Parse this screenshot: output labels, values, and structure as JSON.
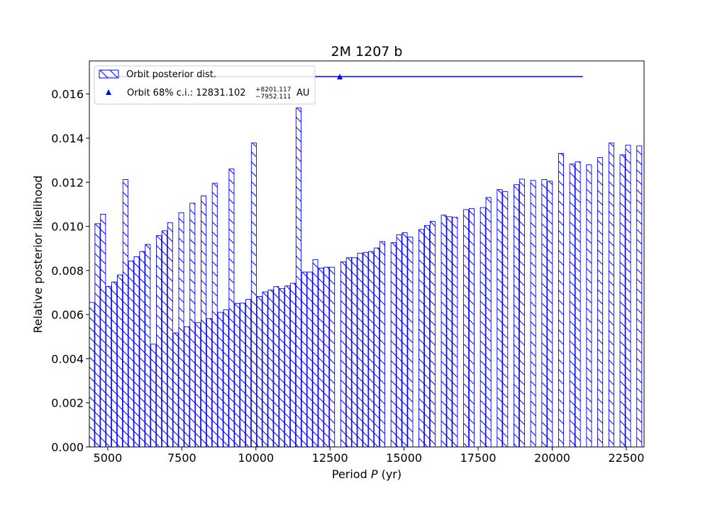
{
  "colors": {
    "series": "#0000ff",
    "axis": "#000000",
    "background": "#ffffff",
    "legend_border": "#cccccc"
  },
  "chart_data": {
    "type": "bar",
    "title": "2M 1207 b",
    "xlabel_prefix": "Period ",
    "xlabel_var": "P",
    "xlabel_suffix": " (yr)",
    "ylabel": "Relative posterior likelihood",
    "xlim": [
      4380,
      23100
    ],
    "ylim": [
      0,
      0.0175
    ],
    "xticks": [
      5000,
      7500,
      10000,
      12500,
      15000,
      17500,
      20000,
      22500
    ],
    "xtick_labels": [
      "5000",
      "7500",
      "10000",
      "12500",
      "15000",
      "17500",
      "20000",
      "22500"
    ],
    "yticks": [
      0,
      0.002,
      0.004,
      0.006,
      0.008,
      0.01,
      0.012,
      0.014,
      0.016
    ],
    "ytick_labels": [
      "0.000",
      "0.002",
      "0.004",
      "0.006",
      "0.008",
      "0.010",
      "0.012",
      "0.014",
      "0.016"
    ],
    "bar_x_start": 4380,
    "bar_step": 188.5,
    "bar_width": 170,
    "values": [
      0.00655,
      0.01012,
      0.01055,
      0.00728,
      0.00748,
      0.0078,
      0.01212,
      0.00843,
      0.00862,
      0.00886,
      0.00918,
      0.00466,
      0.00958,
      0.0098,
      0.01017,
      0.00517,
      0.01062,
      0.00545,
      0.01105,
      0.00563,
      0.01138,
      0.00582,
      0.01195,
      0.0061,
      0.00622,
      0.0126,
      0.00651,
      0.00652,
      0.00669,
      0.01378,
      0.00682,
      0.00703,
      0.00712,
      0.00727,
      0.00718,
      0.0073,
      0.00742,
      0.01537,
      0.00793,
      0.00793,
      0.00849,
      0.00811,
      0.00815,
      0.00815,
      0.0,
      0.00839,
      0.00858,
      0.00858,
      0.00878,
      0.00882,
      0.00886,
      0.00902,
      0.00931,
      0.0,
      0.00926,
      0.00962,
      0.00971,
      0.00951,
      0.0,
      0.00986,
      0.01004,
      0.01023,
      0.0,
      0.01051,
      0.01044,
      0.01041,
      0.0,
      0.01076,
      0.01081,
      0.0,
      0.01085,
      0.01131,
      0.0,
      0.01167,
      0.01158,
      0.0,
      0.01189,
      0.01214,
      0.0,
      0.01208,
      0.0,
      0.01212,
      0.01205,
      0.0,
      0.01331,
      0.0,
      0.01283,
      0.01293,
      0.0,
      0.01279,
      0.0,
      0.01312,
      0.0,
      0.01378,
      0.0,
      0.01324,
      0.01368,
      0.0,
      0.01365
    ],
    "ci": {
      "center": 12831.102,
      "low": 4879,
      "high": 21032,
      "y": 0.01679
    },
    "legend": {
      "hist_label": "Orbit posterior dist.",
      "ci_label_prefix": "Orbit 68% c.i.: 12831.102",
      "ci_plus": "+8201.117",
      "ci_minus": "−7952.111",
      "ci_unit": "AU"
    }
  }
}
